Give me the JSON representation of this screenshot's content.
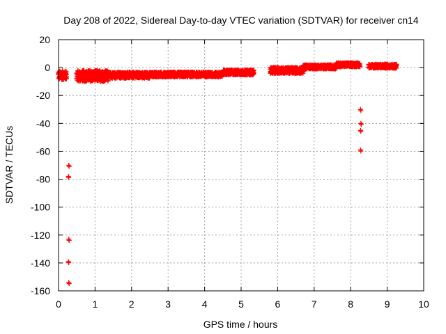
{
  "chart_data": {
    "type": "scatter",
    "title": "Day 208 of 2022, Sidereal Day-to-day VTEC variation (SDTVAR) for receiver cn14",
    "xlabel": "GPS time / hours",
    "ylabel": "SDTVAR / TECUs",
    "xlim": [
      0,
      10
    ],
    "ylim": [
      -160,
      20
    ],
    "xticks": [
      "0",
      "1",
      "2",
      "3",
      "4",
      "5",
      "6",
      "7",
      "8",
      "9",
      "10"
    ],
    "yticks": [
      "20",
      "0",
      "-20",
      "-40",
      "-60",
      "-80",
      "-100",
      "-120",
      "-140",
      "-160"
    ],
    "grid": true,
    "marker": "+",
    "marker_color": "#ff0000",
    "series": [
      {
        "name": "SDTVAR",
        "bands": [
          {
            "x_start": 0.0,
            "x_end": 0.22,
            "y_center": -5.5,
            "y_halfwidth": 3.2
          },
          {
            "x_start": 0.5,
            "x_end": 1.35,
            "y_center": -6.0,
            "y_halfwidth": 4.0
          },
          {
            "x_start": 1.35,
            "x_end": 2.5,
            "y_center": -5.5,
            "y_halfwidth": 2.2
          },
          {
            "x_start": 2.5,
            "x_end": 4.5,
            "y_center": -5.0,
            "y_halfwidth": 1.8
          },
          {
            "x_start": 4.5,
            "x_end": 5.35,
            "y_center": -3.5,
            "y_halfwidth": 1.8
          },
          {
            "x_start": 5.8,
            "x_end": 6.7,
            "y_center": -2.0,
            "y_halfwidth": 2.2
          },
          {
            "x_start": 6.7,
            "x_end": 7.6,
            "y_center": 0.5,
            "y_halfwidth": 1.5
          },
          {
            "x_start": 7.6,
            "x_end": 8.25,
            "y_center": 2.0,
            "y_halfwidth": 1.5
          },
          {
            "x_start": 8.5,
            "x_end": 9.25,
            "y_center": 1.0,
            "y_halfwidth": 1.5
          }
        ],
        "outliers": [
          {
            "x": 0.28,
            "y": -70
          },
          {
            "x": 0.27,
            "y": -78
          },
          {
            "x": 0.28,
            "y": -123
          },
          {
            "x": 0.27,
            "y": -139
          },
          {
            "x": 0.28,
            "y": -154
          },
          {
            "x": 8.27,
            "y": -30
          },
          {
            "x": 8.28,
            "y": -40
          },
          {
            "x": 8.27,
            "y": -45
          },
          {
            "x": 8.27,
            "y": -59
          }
        ]
      }
    ]
  }
}
